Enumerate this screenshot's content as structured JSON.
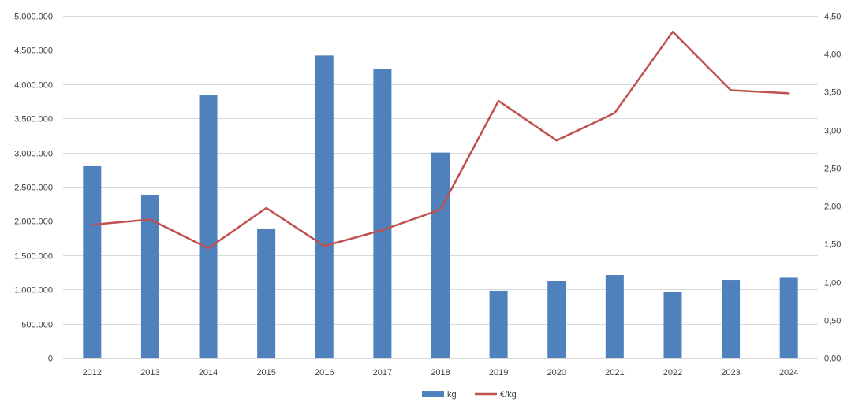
{
  "chart_data": {
    "type": "bar",
    "categories": [
      "2012",
      "2013",
      "2014",
      "2015",
      "2016",
      "2017",
      "2018",
      "2019",
      "2020",
      "2021",
      "2022",
      "2023",
      "2024"
    ],
    "series": [
      {
        "name": "kg",
        "type": "bar",
        "axis": "left",
        "color": "#4F81BD",
        "values": [
          2800000,
          2380000,
          3840000,
          1890000,
          4420000,
          4220000,
          3000000,
          980000,
          1120000,
          1210000,
          960000,
          1140000,
          1170000
        ]
      },
      {
        "name": "€/kg",
        "type": "line",
        "axis": "right",
        "color": "#C0504D",
        "values": [
          1.75,
          1.82,
          1.44,
          1.97,
          1.47,
          1.68,
          1.95,
          3.38,
          2.86,
          3.22,
          4.29,
          3.52,
          3.48
        ]
      }
    ],
    "y_left": {
      "range": [
        0,
        5000000
      ],
      "ticks": [
        0,
        500000,
        1000000,
        1500000,
        2000000,
        2500000,
        3000000,
        3500000,
        4000000,
        4500000,
        5000000
      ],
      "tick_labels": [
        "0",
        "500.000",
        "1.000.000",
        "1.500.000",
        "2.000.000",
        "2.500.000",
        "3.000.000",
        "3.500.000",
        "4.000.000",
        "4.500.000",
        "5.000.000"
      ]
    },
    "y_right": {
      "range": [
        0,
        4.5
      ],
      "ticks": [
        0,
        0.5,
        1,
        1.5,
        2,
        2.5,
        3,
        3.5,
        4,
        4.5
      ],
      "tick_labels": [
        "0,00",
        "0,50",
        "1,00",
        "1,50",
        "2,00",
        "2,50",
        "3,00",
        "3,50",
        "4,00",
        "4,50"
      ]
    },
    "grid": true,
    "legend": "bottom",
    "colors": {
      "grid": "#D9D9D9",
      "text": "#404040"
    }
  }
}
